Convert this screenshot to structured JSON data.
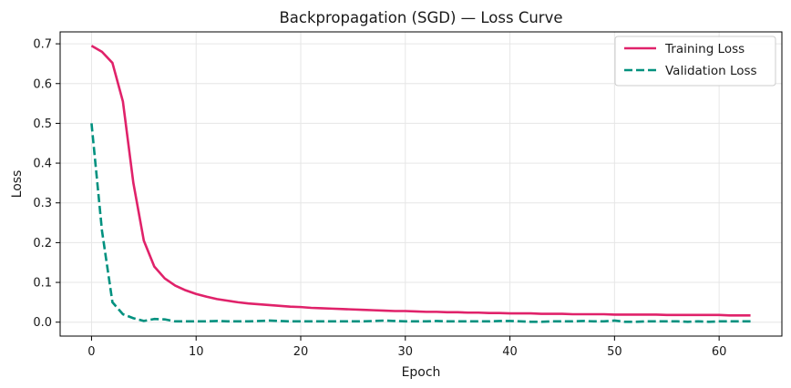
{
  "chart_data": {
    "type": "line",
    "title": "Backpropagation (SGD) — Loss Curve",
    "xlabel": "Epoch",
    "ylabel": "Loss",
    "xlim": [
      -3,
      66
    ],
    "ylim": [
      -0.035,
      0.73
    ],
    "xticks": [
      0,
      10,
      20,
      30,
      40,
      50,
      60
    ],
    "yticks": [
      0.0,
      0.1,
      0.2,
      0.3,
      0.4,
      0.5,
      0.6,
      0.7
    ],
    "ytick_labels": [
      "0.0",
      "0.1",
      "0.2",
      "0.3",
      "0.4",
      "0.5",
      "0.6",
      "0.7"
    ],
    "grid": true,
    "legend_position": "top-right",
    "x": [
      0,
      1,
      2,
      3,
      4,
      5,
      6,
      7,
      8,
      9,
      10,
      11,
      12,
      13,
      14,
      15,
      16,
      17,
      18,
      19,
      20,
      21,
      22,
      23,
      24,
      25,
      26,
      27,
      28,
      29,
      30,
      31,
      32,
      33,
      34,
      35,
      36,
      37,
      38,
      39,
      40,
      41,
      42,
      43,
      44,
      45,
      46,
      47,
      48,
      49,
      50,
      51,
      52,
      53,
      54,
      55,
      56,
      57,
      58,
      59,
      60,
      61,
      62,
      63
    ],
    "series": [
      {
        "name": "Training Loss",
        "color": "#e0226a",
        "style": "solid",
        "values": [
          0.695,
          0.68,
          0.652,
          0.555,
          0.35,
          0.205,
          0.14,
          0.11,
          0.092,
          0.08,
          0.071,
          0.064,
          0.058,
          0.054,
          0.05,
          0.047,
          0.045,
          0.043,
          0.041,
          0.039,
          0.038,
          0.036,
          0.035,
          0.034,
          0.033,
          0.032,
          0.031,
          0.03,
          0.029,
          0.028,
          0.028,
          0.027,
          0.026,
          0.026,
          0.025,
          0.025,
          0.024,
          0.024,
          0.023,
          0.023,
          0.022,
          0.022,
          0.022,
          0.021,
          0.021,
          0.021,
          0.02,
          0.02,
          0.02,
          0.02,
          0.019,
          0.019,
          0.019,
          0.019,
          0.019,
          0.018,
          0.018,
          0.018,
          0.018,
          0.018,
          0.018,
          0.017,
          0.017,
          0.017
        ]
      },
      {
        "name": "Validation Loss",
        "color": "#00917f",
        "style": "dashed",
        "values": [
          0.5,
          0.23,
          0.05,
          0.02,
          0.01,
          0.003,
          0.008,
          0.007,
          0.002,
          0.002,
          0.002,
          0.002,
          0.003,
          0.002,
          0.002,
          0.002,
          0.003,
          0.004,
          0.003,
          0.002,
          0.002,
          0.002,
          0.002,
          0.002,
          0.002,
          0.002,
          0.002,
          0.003,
          0.004,
          0.003,
          0.002,
          0.002,
          0.002,
          0.003,
          0.002,
          0.002,
          0.002,
          0.002,
          0.002,
          0.003,
          0.003,
          0.002,
          0.001,
          0.001,
          0.002,
          0.002,
          0.002,
          0.003,
          0.002,
          0.002,
          0.004,
          0.001,
          0.001,
          0.002,
          0.002,
          0.002,
          0.002,
          0.001,
          0.002,
          0.001,
          0.002,
          0.002,
          0.002,
          0.002
        ]
      }
    ]
  }
}
